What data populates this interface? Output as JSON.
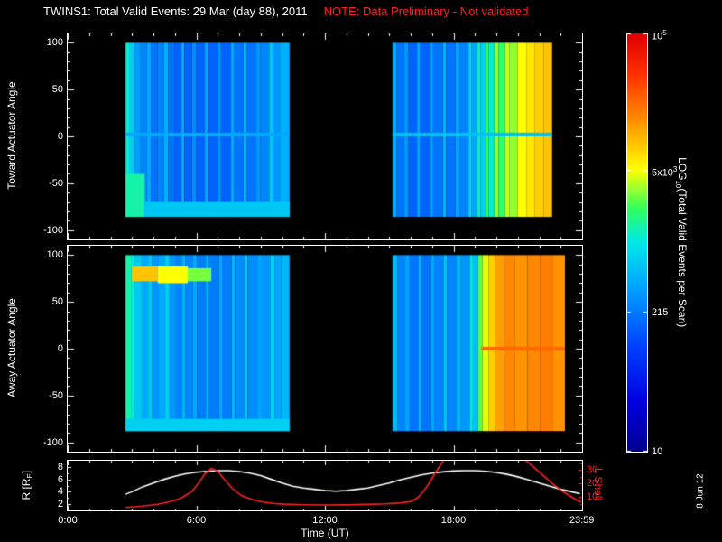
{
  "title": {
    "main": "TWINS1: Total Valid Events: 29 Mar (day  88), 2011",
    "note": "NOTE: Data Preliminary - Not validated"
  },
  "date_stamp": "8 Jun 12",
  "colors": {
    "background": "#000000",
    "axis": "#ffffff",
    "note_text": "#ff2222",
    "l_shell_curve": "#ff2222",
    "r_curve": "#ffffff"
  },
  "chart_data": {
    "type": "heatmap",
    "title": "TWINS1: Total Valid Events: 29 Mar (day 88), 2011",
    "time_axis": {
      "label": "Time (UT)",
      "range_hours": [
        0,
        24
      ],
      "ticks": [
        {
          "hour": 0,
          "label": "0:00"
        },
        {
          "hour": 6,
          "label": "6:00"
        },
        {
          "hour": 12,
          "label": "12:00"
        },
        {
          "hour": 18,
          "label": "18:00"
        },
        {
          "hour": 23.983,
          "label": "23:59"
        }
      ]
    },
    "colorbar": {
      "title": {
        "pre": "LOG",
        "sub": "10",
        "post": "(Total Valid Events per Scan)"
      },
      "scale": "log10",
      "range_log10": [
        1,
        5
      ],
      "tick_labels": [
        {
          "base": "10",
          "sup": "5",
          "frac": 1.0
        },
        {
          "base": "5x10",
          "sup": "3",
          "frac": 0.674
        },
        {
          "base": "215",
          "sup": "",
          "frac": 0.333
        },
        {
          "base": "10",
          "sup": "",
          "frac": 0.0
        }
      ],
      "colormap": [
        [
          0.0,
          "#000090"
        ],
        [
          0.12,
          "#0000e0"
        ],
        [
          0.25,
          "#0040ff"
        ],
        [
          0.4,
          "#00a8ff"
        ],
        [
          0.5,
          "#00e8e8"
        ],
        [
          0.58,
          "#30ff60"
        ],
        [
          0.675,
          "#ffff00"
        ],
        [
          0.8,
          "#ff8800"
        ],
        [
          0.9,
          "#ff3300"
        ],
        [
          1.0,
          "#e00000"
        ]
      ]
    },
    "panels": [
      {
        "name": "toward",
        "ylabel": "Toward Actuator Angle",
        "yrange": [
          -110,
          110
        ],
        "yticks": [
          100,
          50,
          0,
          -50,
          -100
        ],
        "angle_extent": [
          -86,
          100
        ],
        "data_gaps_hours": [
          [
            0,
            2.7
          ],
          [
            10.35,
            15.15
          ],
          [
            22.6,
            24
          ]
        ],
        "stripes": [
          [
            2.7,
            2.9,
            3.05
          ],
          [
            2.9,
            3.1,
            2.85
          ],
          [
            3.1,
            3.4,
            2.55
          ],
          [
            3.4,
            3.7,
            2.4
          ],
          [
            3.7,
            3.9,
            2.6
          ],
          [
            3.9,
            4.2,
            2.3
          ],
          [
            4.2,
            4.5,
            2.4
          ],
          [
            4.5,
            4.7,
            2.65
          ],
          [
            4.7,
            5.0,
            2.3
          ],
          [
            5.0,
            5.3,
            2.2
          ],
          [
            5.3,
            5.45,
            2.6
          ],
          [
            5.45,
            5.8,
            2.2
          ],
          [
            5.8,
            6.0,
            2.45
          ],
          [
            6.0,
            6.4,
            2.2
          ],
          [
            6.4,
            6.55,
            2.6
          ],
          [
            6.55,
            7.0,
            2.2
          ],
          [
            7.0,
            7.15,
            2.5
          ],
          [
            7.15,
            7.6,
            2.2
          ],
          [
            7.6,
            7.75,
            2.6
          ],
          [
            7.75,
            8.2,
            2.3
          ],
          [
            8.2,
            8.35,
            2.7
          ],
          [
            8.35,
            8.8,
            2.3
          ],
          [
            8.8,
            9.0,
            2.5
          ],
          [
            9.0,
            9.4,
            2.4
          ],
          [
            9.4,
            9.6,
            2.8
          ],
          [
            9.6,
            9.9,
            2.5
          ],
          [
            9.9,
            10.35,
            2.65
          ],
          [
            15.15,
            15.35,
            2.6
          ],
          [
            15.35,
            15.7,
            2.3
          ],
          [
            15.7,
            15.9,
            2.5
          ],
          [
            15.9,
            16.3,
            2.2
          ],
          [
            16.3,
            16.45,
            2.6
          ],
          [
            16.45,
            16.9,
            2.2
          ],
          [
            16.9,
            17.05,
            2.5
          ],
          [
            17.05,
            17.5,
            2.3
          ],
          [
            17.5,
            17.65,
            2.7
          ],
          [
            17.65,
            18.1,
            2.3
          ],
          [
            18.1,
            18.3,
            2.6
          ],
          [
            18.3,
            18.7,
            2.4
          ],
          [
            18.7,
            18.85,
            2.9
          ],
          [
            18.85,
            19.1,
            2.6
          ],
          [
            19.1,
            19.25,
            3.1
          ],
          [
            19.25,
            19.5,
            2.85
          ],
          [
            19.5,
            19.65,
            3.3
          ],
          [
            19.65,
            19.9,
            3.05
          ],
          [
            19.9,
            20.1,
            3.5
          ],
          [
            20.1,
            20.4,
            3.3
          ],
          [
            20.4,
            20.6,
            3.6
          ],
          [
            20.6,
            21.0,
            3.5
          ],
          [
            21.0,
            21.4,
            3.7
          ],
          [
            21.4,
            21.8,
            3.8
          ],
          [
            21.8,
            22.2,
            3.9
          ],
          [
            22.2,
            22.6,
            3.95
          ]
        ],
        "overlays": [
          [
            2.7,
            3.6,
            -86,
            -40,
            3.15
          ],
          [
            3.6,
            10.35,
            -86,
            -70,
            2.8
          ],
          [
            2.7,
            10.35,
            0,
            4,
            2.6
          ],
          [
            15.15,
            22.6,
            0,
            4,
            2.75
          ]
        ]
      },
      {
        "name": "away",
        "ylabel": "Away Actuator Angle",
        "yrange": [
          -110,
          110
        ],
        "yticks": [
          100,
          50,
          0,
          -50,
          -100
        ],
        "angle_extent": [
          -88,
          100
        ],
        "data_gaps_hours": [
          [
            0,
            2.7
          ],
          [
            10.35,
            15.15
          ],
          [
            23.2,
            24
          ]
        ],
        "stripes": [
          [
            2.7,
            2.95,
            3.15
          ],
          [
            2.95,
            3.15,
            3.0
          ],
          [
            3.15,
            3.45,
            2.8
          ],
          [
            3.45,
            3.75,
            2.6
          ],
          [
            3.75,
            3.95,
            2.8
          ],
          [
            3.95,
            4.25,
            2.5
          ],
          [
            4.25,
            4.55,
            2.6
          ],
          [
            4.55,
            4.75,
            2.85
          ],
          [
            4.75,
            5.05,
            2.5
          ],
          [
            5.05,
            5.35,
            2.4
          ],
          [
            5.35,
            5.5,
            2.7
          ],
          [
            5.5,
            5.85,
            2.4
          ],
          [
            5.85,
            6.05,
            2.6
          ],
          [
            6.05,
            6.45,
            2.35
          ],
          [
            6.45,
            6.6,
            2.7
          ],
          [
            6.6,
            7.05,
            2.35
          ],
          [
            7.05,
            7.2,
            2.6
          ],
          [
            7.2,
            7.65,
            2.35
          ],
          [
            7.65,
            7.8,
            2.7
          ],
          [
            7.8,
            8.25,
            2.45
          ],
          [
            8.25,
            8.4,
            2.8
          ],
          [
            8.4,
            8.85,
            2.45
          ],
          [
            8.85,
            9.05,
            2.6
          ],
          [
            9.05,
            9.45,
            2.5
          ],
          [
            9.45,
            9.65,
            2.9
          ],
          [
            9.65,
            9.95,
            2.6
          ],
          [
            9.95,
            10.35,
            2.7
          ],
          [
            15.15,
            15.4,
            2.7
          ],
          [
            15.4,
            15.75,
            2.4
          ],
          [
            15.75,
            15.95,
            2.6
          ],
          [
            15.95,
            16.35,
            2.3
          ],
          [
            16.35,
            16.5,
            2.7
          ],
          [
            16.5,
            16.95,
            2.3
          ],
          [
            16.95,
            17.1,
            2.6
          ],
          [
            17.1,
            17.55,
            2.4
          ],
          [
            17.55,
            17.7,
            2.8
          ],
          [
            17.7,
            18.15,
            2.4
          ],
          [
            18.15,
            18.35,
            2.7
          ],
          [
            18.35,
            18.75,
            2.5
          ],
          [
            18.75,
            18.9,
            3.0
          ],
          [
            18.9,
            19.15,
            2.75
          ],
          [
            19.15,
            19.35,
            3.4
          ],
          [
            19.35,
            19.65,
            3.65
          ],
          [
            19.65,
            19.95,
            3.9
          ],
          [
            19.95,
            20.35,
            4.1
          ],
          [
            20.35,
            20.85,
            4.2
          ],
          [
            20.85,
            21.45,
            4.15
          ],
          [
            21.45,
            22.05,
            4.2
          ],
          [
            22.05,
            22.65,
            4.25
          ],
          [
            22.65,
            23.2,
            4.15
          ]
        ],
        "overlays": [
          [
            3.0,
            4.2,
            72,
            88,
            3.95
          ],
          [
            4.2,
            5.6,
            70,
            88,
            3.7
          ],
          [
            5.6,
            6.7,
            72,
            86,
            3.45
          ],
          [
            2.7,
            10.35,
            -88,
            -75,
            2.85
          ],
          [
            19.3,
            23.2,
            -2,
            2,
            4.35
          ]
        ]
      }
    ],
    "orbit_panel": {
      "ylabel": {
        "pre": "R [R",
        "sub": "E",
        "post": "]"
      },
      "yticks": [
        8,
        6,
        4,
        2
      ],
      "yrange": [
        1,
        9
      ],
      "right_label": "L Shell",
      "right_ticks": [
        30,
        20,
        10
      ],
      "right_range": [
        0,
        36.7
      ],
      "r_curve": [
        [
          2.7,
          3.6
        ],
        [
          3.0,
          4.0
        ],
        [
          3.5,
          4.8
        ],
        [
          4.0,
          5.4
        ],
        [
          4.5,
          6.0
        ],
        [
          5.0,
          6.5
        ],
        [
          5.5,
          6.9
        ],
        [
          6.0,
          7.15
        ],
        [
          6.5,
          7.3
        ],
        [
          7.0,
          7.4
        ],
        [
          7.5,
          7.4
        ],
        [
          8.0,
          7.25
        ],
        [
          8.5,
          7.0
        ],
        [
          9.0,
          6.6
        ],
        [
          9.5,
          6.0
        ],
        [
          10.0,
          5.4
        ],
        [
          10.5,
          4.9
        ],
        [
          11.0,
          4.6
        ],
        [
          11.5,
          4.4
        ],
        [
          12.0,
          4.2
        ],
        [
          12.5,
          4.1
        ],
        [
          13.0,
          4.2
        ],
        [
          13.5,
          4.4
        ],
        [
          14.0,
          4.6
        ],
        [
          14.5,
          5.0
        ],
        [
          15.0,
          5.4
        ],
        [
          15.5,
          5.9
        ],
        [
          16.0,
          6.3
        ],
        [
          16.5,
          6.7
        ],
        [
          17.0,
          7.0
        ],
        [
          17.5,
          7.2
        ],
        [
          18.0,
          7.35
        ],
        [
          18.5,
          7.4
        ],
        [
          19.0,
          7.4
        ],
        [
          19.5,
          7.3
        ],
        [
          20.0,
          7.1
        ],
        [
          20.5,
          6.8
        ],
        [
          21.0,
          6.4
        ],
        [
          21.5,
          5.9
        ],
        [
          22.0,
          5.4
        ],
        [
          22.5,
          4.9
        ],
        [
          23.0,
          4.4
        ],
        [
          23.5,
          4.0
        ],
        [
          23.9,
          3.7
        ]
      ],
      "l_curve": [
        [
          2.7,
          2.2
        ],
        [
          3.5,
          3.2
        ],
        [
          4.2,
          4.5
        ],
        [
          4.8,
          6.5
        ],
        [
          5.3,
          9
        ],
        [
          5.8,
          14
        ],
        [
          6.1,
          20
        ],
        [
          6.4,
          27
        ],
        [
          6.7,
          31
        ],
        [
          7.0,
          29
        ],
        [
          7.3,
          23
        ],
        [
          7.7,
          16
        ],
        [
          8.1,
          11
        ],
        [
          8.6,
          8
        ],
        [
          9.1,
          6.2
        ],
        [
          9.6,
          5.2
        ],
        [
          10.1,
          4.6
        ],
        [
          11,
          4.2
        ],
        [
          12,
          4.0
        ],
        [
          13,
          4.1
        ],
        [
          14,
          4.4
        ],
        [
          14.8,
          4.8
        ],
        [
          15.5,
          5.4
        ],
        [
          16.0,
          6.5
        ],
        [
          16.3,
          9
        ],
        [
          16.6,
          14
        ],
        [
          16.9,
          21
        ],
        [
          17.2,
          29
        ],
        [
          17.5,
          36
        ],
        [
          17.8,
          42
        ],
        [
          21.0,
          42
        ],
        [
          21.6,
          34
        ],
        [
          22.1,
          27
        ],
        [
          22.6,
          20
        ],
        [
          23.1,
          14
        ],
        [
          23.6,
          9
        ],
        [
          23.95,
          6
        ]
      ]
    }
  }
}
